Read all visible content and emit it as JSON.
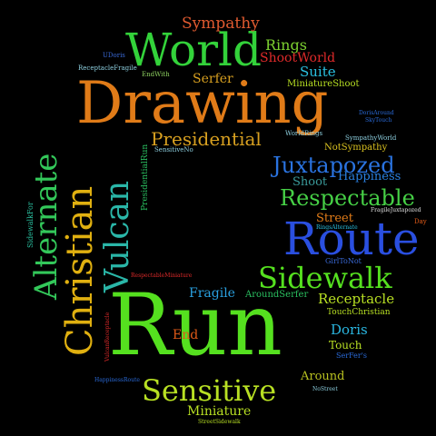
{
  "words": [
    {
      "text": "Run",
      "color": "#55e01f"
    },
    {
      "text": "Drawing",
      "color": "#e07b18"
    },
    {
      "text": "World",
      "color": "#33d23a"
    },
    {
      "text": "Route",
      "color": "#2a4fe0"
    },
    {
      "text": "Christian",
      "color": "#e0b010"
    },
    {
      "text": "Vulcan",
      "color": "#2ab6a8"
    },
    {
      "text": "Alternate",
      "color": "#33c85a"
    },
    {
      "text": "Sidewalk",
      "color": "#55e01f"
    },
    {
      "text": "Sensitive",
      "color": "#b8e023"
    },
    {
      "text": "Respectable",
      "color": "#46d046"
    },
    {
      "text": "Juxtapozed",
      "color": "#2a73e0"
    },
    {
      "text": "Presidential",
      "color": "#d8a020"
    },
    {
      "text": "Sympathy",
      "color": "#e05a30"
    },
    {
      "text": "Rings",
      "color": "#7cd030"
    },
    {
      "text": "ShootWorld",
      "color": "#e02a2a"
    },
    {
      "text": "Suite",
      "color": "#2ac0e0"
    },
    {
      "text": "Serfer",
      "color": "#d8a020"
    },
    {
      "text": "MiniatureShoot",
      "color": "#b8e023"
    },
    {
      "text": "Happiness",
      "color": "#2a80e0"
    },
    {
      "text": "Shoot",
      "color": "#3a9a9a"
    },
    {
      "text": "NotSympathy",
      "color": "#d8c020"
    },
    {
      "text": "Street",
      "color": "#e07b18"
    },
    {
      "text": "Receptacle",
      "color": "#b8e023"
    },
    {
      "text": "Fragile",
      "color": "#2aa0e0"
    },
    {
      "text": "AroundSerfer",
      "color": "#2ac060"
    },
    {
      "text": "Doris",
      "color": "#2ab6e0"
    },
    {
      "text": "End",
      "color": "#e05a18"
    },
    {
      "text": "Touch",
      "color": "#b8e023"
    },
    {
      "text": "Around",
      "color": "#b8c020"
    },
    {
      "text": "Miniature",
      "color": "#b8e023"
    },
    {
      "text": "TouchChristian",
      "color": "#b8e023"
    },
    {
      "text": "GirlToNot",
      "color": "#3a6ad8"
    },
    {
      "text": "SerFer's",
      "color": "#2a6ad8"
    },
    {
      "text": "ReceptacleFragile",
      "color": "#8ed0e0"
    },
    {
      "text": "UDoris",
      "color": "#3a6ad8"
    },
    {
      "text": "EndWith",
      "color": "#8ed060"
    },
    {
      "text": "PresidentialRun",
      "color": "#2ac060"
    },
    {
      "text": "SensitiveNo",
      "color": "#8ed0e0"
    },
    {
      "text": "WorldRings",
      "color": "#8ed0e0"
    },
    {
      "text": "SympathyWorld",
      "color": "#8ed0e0"
    },
    {
      "text": "DorisAround",
      "color": "#2a6ad8"
    },
    {
      "text": "SkyTouch",
      "color": "#2a6ad8"
    },
    {
      "text": "FragileJuxtapozed",
      "color": "#e0e0e0"
    },
    {
      "text": "RingsAlternate",
      "color": "#2ac0e0"
    },
    {
      "text": "Day",
      "color": "#e05a18"
    },
    {
      "text": "SidewalkFor",
      "color": "#2ac0a0"
    },
    {
      "text": "RespectableMiniature",
      "color": "#e02a2a"
    },
    {
      "text": "HappinessRoute",
      "color": "#2a6ad8"
    },
    {
      "text": "StreetSidewalk",
      "color": "#b8e023"
    },
    {
      "text": "NoStreet",
      "color": "#8ed0e0"
    },
    {
      "text": "VulcanReceptacle",
      "color": "#e02a2a"
    }
  ]
}
